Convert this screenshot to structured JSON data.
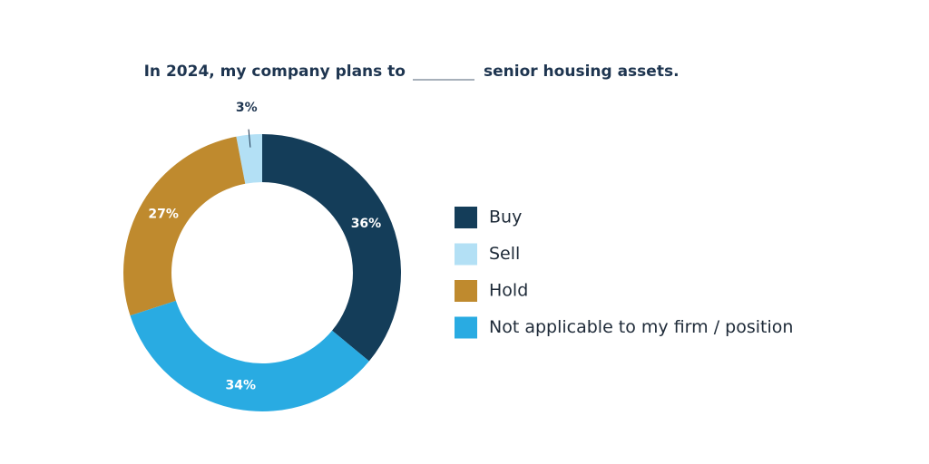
{
  "chart_data": {
    "type": "donut",
    "title_parts": [
      "In 2024, my company plans to",
      "senior housing assets."
    ],
    "categories": [
      "Buy",
      "Sell",
      "Hold",
      "Not applicable to my firm / position"
    ],
    "values": [
      36,
      3,
      27,
      34
    ],
    "value_labels": [
      "36%",
      "3%",
      "27%",
      "34%"
    ],
    "colors": [
      "#143d59",
      "#b3e0f5",
      "#bf8a2e",
      "#29abe2"
    ],
    "legend": "right"
  }
}
